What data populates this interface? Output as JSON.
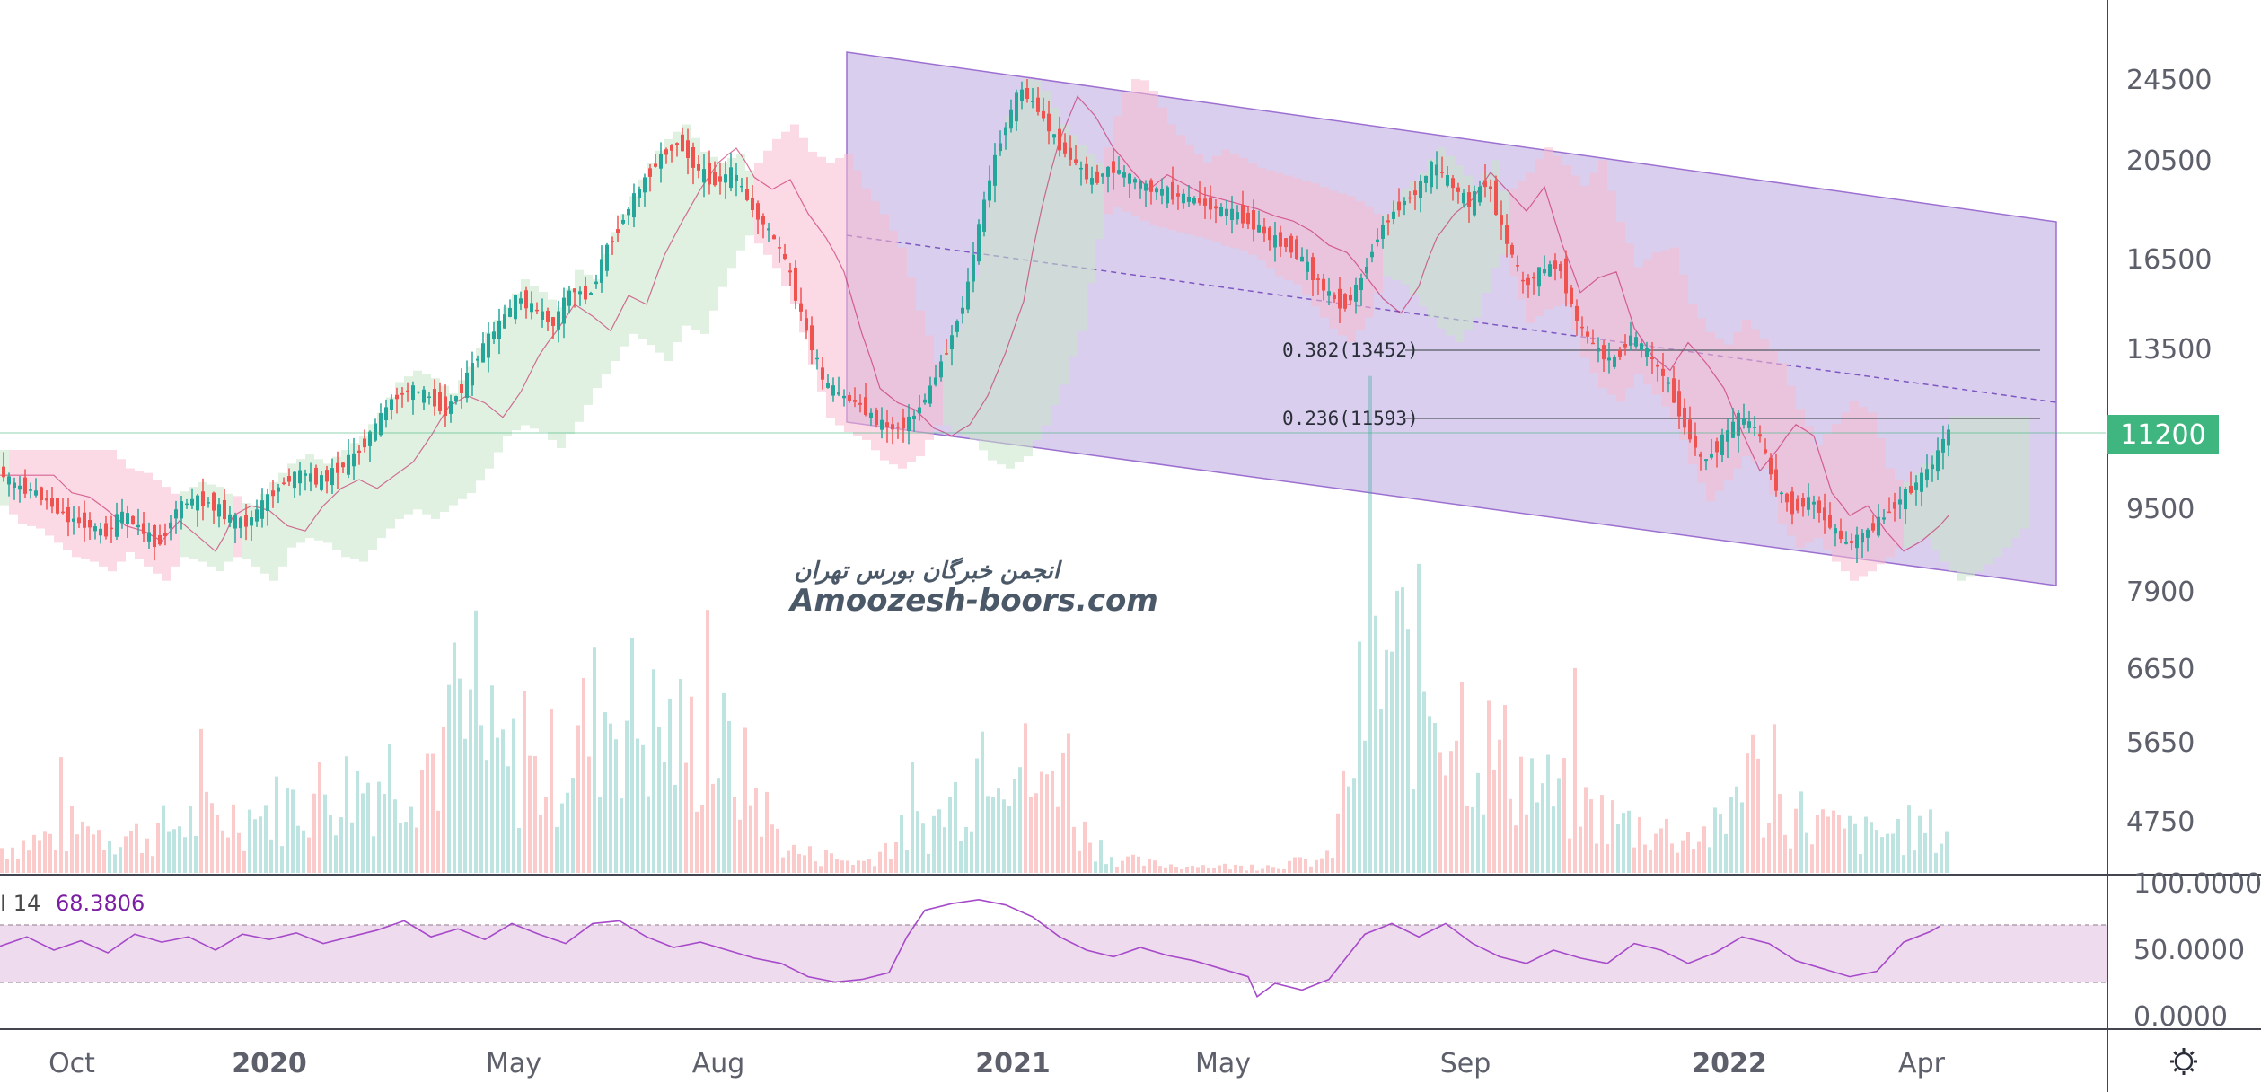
{
  "colors": {
    "up": "#26a69a",
    "down": "#ef5350",
    "channel_fill": "#b39ddb",
    "channel_line": "#9c6fd0",
    "rsi_line": "#a64ac9",
    "rsi_band": "#e8cfe8",
    "price_line": "#3fb67f",
    "cloud_green": "#c8e6c9",
    "cloud_red": "#f8bbd0"
  },
  "chart_data": {
    "type": "candlestick",
    "x_ticks": [
      "Oct",
      "2020",
      "May",
      "Aug",
      "2021",
      "May",
      "Sep",
      "2022",
      "Apr"
    ],
    "x_ticks_bold": [
      false,
      true,
      false,
      false,
      true,
      false,
      false,
      true,
      false
    ],
    "y_ticks": [
      "24500",
      "20500",
      "16500",
      "13500",
      "9500",
      "7900",
      "6650",
      "5650",
      "4750"
    ],
    "last_price": "11200",
    "fib_levels": [
      {
        "label": "0.382(13452)",
        "value": 13452
      },
      {
        "label": "0.236(11593)",
        "value": 11593
      }
    ],
    "watermark": {
      "line1": "انجمن خبرگان بورس تهران",
      "line2": "Amoozesh-boors.com"
    },
    "indicator": {
      "label": "I 14",
      "value": "68.3806",
      "y_ticks": [
        "100.0000",
        "50.0000",
        "0.0000"
      ],
      "band": [
        30,
        70
      ]
    },
    "price_path": [
      [
        0,
        10400
      ],
      [
        20,
        10000
      ],
      [
        40,
        9900
      ],
      [
        60,
        9600
      ],
      [
        80,
        9300
      ],
      [
        100,
        9200
      ],
      [
        120,
        9000
      ],
      [
        140,
        9400
      ],
      [
        160,
        9100
      ],
      [
        180,
        8800
      ],
      [
        190,
        9100
      ],
      [
        200,
        9500
      ],
      [
        220,
        9700
      ],
      [
        240,
        9600
      ],
      [
        260,
        9300
      ],
      [
        280,
        9200
      ],
      [
        300,
        9700
      ],
      [
        320,
        10100
      ],
      [
        340,
        10300
      ],
      [
        360,
        10100
      ],
      [
        380,
        10400
      ],
      [
        400,
        10700
      ],
      [
        420,
        11300
      ],
      [
        440,
        12100
      ],
      [
        460,
        12400
      ],
      [
        480,
        12200
      ],
      [
        500,
        11800
      ],
      [
        520,
        12500
      ],
      [
        540,
        13500
      ],
      [
        560,
        14300
      ],
      [
        580,
        15200
      ],
      [
        600,
        14800
      ],
      [
        620,
        14300
      ],
      [
        640,
        15500
      ],
      [
        660,
        15200
      ],
      [
        680,
        16900
      ],
      [
        700,
        18300
      ],
      [
        720,
        19600
      ],
      [
        740,
        20700
      ],
      [
        760,
        21400
      ],
      [
        780,
        20100
      ],
      [
        800,
        19600
      ],
      [
        820,
        20000
      ],
      [
        840,
        18600
      ],
      [
        860,
        17600
      ],
      [
        880,
        16300
      ],
      [
        900,
        14200
      ],
      [
        920,
        12600
      ],
      [
        940,
        12200
      ],
      [
        960,
        12000
      ],
      [
        980,
        11500
      ],
      [
        1000,
        11300
      ],
      [
        1020,
        11600
      ],
      [
        1040,
        12400
      ],
      [
        1060,
        13600
      ],
      [
        1080,
        15300
      ],
      [
        1100,
        18800
      ],
      [
        1120,
        21800
      ],
      [
        1140,
        24000
      ],
      [
        1160,
        23000
      ],
      [
        1180,
        21400
      ],
      [
        1200,
        20400
      ],
      [
        1220,
        19600
      ],
      [
        1240,
        20200
      ],
      [
        1260,
        19800
      ],
      [
        1280,
        19400
      ],
      [
        1300,
        19200
      ],
      [
        1320,
        19000
      ],
      [
        1340,
        18800
      ],
      [
        1360,
        18500
      ],
      [
        1380,
        18300
      ],
      [
        1400,
        17900
      ],
      [
        1420,
        17300
      ],
      [
        1440,
        17000
      ],
      [
        1460,
        16200
      ],
      [
        1480,
        15400
      ],
      [
        1500,
        14900
      ],
      [
        1520,
        15800
      ],
      [
        1540,
        17600
      ],
      [
        1560,
        18600
      ],
      [
        1580,
        19200
      ],
      [
        1600,
        20300
      ],
      [
        1620,
        19500
      ],
      [
        1640,
        18700
      ],
      [
        1660,
        19700
      ],
      [
        1680,
        17300
      ],
      [
        1700,
        15600
      ],
      [
        1720,
        16100
      ],
      [
        1740,
        16300
      ],
      [
        1760,
        14400
      ],
      [
        1780,
        13500
      ],
      [
        1800,
        13100
      ],
      [
        1820,
        13900
      ],
      [
        1840,
        13300
      ],
      [
        1860,
        12600
      ],
      [
        1880,
        11400
      ],
      [
        1900,
        10500
      ],
      [
        1920,
        11000
      ],
      [
        1940,
        11600
      ],
      [
        1960,
        11300
      ],
      [
        1980,
        10000
      ],
      [
        2000,
        9500
      ],
      [
        2020,
        9700
      ],
      [
        2040,
        9200
      ],
      [
        2060,
        8800
      ],
      [
        2080,
        9000
      ],
      [
        2100,
        9300
      ],
      [
        2120,
        9700
      ],
      [
        2140,
        10100
      ],
      [
        2160,
        10600
      ],
      [
        2170,
        11200
      ]
    ],
    "volume_profile": [
      [
        0,
        35
      ],
      [
        40,
        45
      ],
      [
        80,
        60
      ],
      [
        120,
        55
      ],
      [
        160,
        50
      ],
      [
        200,
        70
      ],
      [
        240,
        75
      ],
      [
        280,
        80
      ],
      [
        320,
        95
      ],
      [
        360,
        110
      ],
      [
        400,
        125
      ],
      [
        440,
        145
      ],
      [
        480,
        160
      ],
      [
        520,
        190
      ],
      [
        560,
        150
      ],
      [
        600,
        130
      ],
      [
        640,
        180
      ],
      [
        680,
        240
      ],
      [
        720,
        200
      ],
      [
        760,
        180
      ],
      [
        800,
        170
      ],
      [
        840,
        110
      ],
      [
        860,
        60
      ],
      [
        880,
        30
      ],
      [
        920,
        20
      ],
      [
        960,
        15
      ],
      [
        1000,
        50
      ],
      [
        1040,
        70
      ],
      [
        1080,
        130
      ],
      [
        1100,
        230
      ],
      [
        1120,
        190
      ],
      [
        1140,
        140
      ],
      [
        1160,
        100
      ],
      [
        1180,
        200
      ],
      [
        1200,
        60
      ],
      [
        1240,
        20
      ],
      [
        1280,
        12
      ],
      [
        1320,
        10
      ],
      [
        1400,
        8
      ],
      [
        1480,
        20
      ],
      [
        1500,
        140
      ],
      [
        1520,
        250
      ],
      [
        1540,
        290
      ],
      [
        1560,
        280
      ],
      [
        1600,
        250
      ],
      [
        1620,
        230
      ],
      [
        1640,
        180
      ],
      [
        1680,
        150
      ],
      [
        1720,
        110
      ],
      [
        1760,
        90
      ],
      [
        1800,
        70
      ],
      [
        1840,
        60
      ],
      [
        1880,
        50
      ],
      [
        1920,
        60
      ],
      [
        1940,
        180
      ],
      [
        1960,
        100
      ],
      [
        2000,
        80
      ],
      [
        2040,
        60
      ],
      [
        2080,
        50
      ],
      [
        2120,
        60
      ],
      [
        2160,
        55
      ]
    ],
    "rsi_path": [
      [
        0,
        53
      ],
      [
        30,
        60
      ],
      [
        60,
        50
      ],
      [
        90,
        57
      ],
      [
        120,
        48
      ],
      [
        150,
        62
      ],
      [
        180,
        56
      ],
      [
        210,
        60
      ],
      [
        240,
        50
      ],
      [
        270,
        62
      ],
      [
        300,
        58
      ],
      [
        330,
        63
      ],
      [
        360,
        55
      ],
      [
        390,
        60
      ],
      [
        420,
        65
      ],
      [
        450,
        72
      ],
      [
        480,
        60
      ],
      [
        510,
        66
      ],
      [
        540,
        58
      ],
      [
        570,
        70
      ],
      [
        600,
        62
      ],
      [
        630,
        55
      ],
      [
        660,
        70
      ],
      [
        690,
        72
      ],
      [
        720,
        60
      ],
      [
        750,
        52
      ],
      [
        780,
        56
      ],
      [
        810,
        50
      ],
      [
        840,
        44
      ],
      [
        870,
        40
      ],
      [
        900,
        30
      ],
      [
        930,
        26
      ],
      [
        960,
        28
      ],
      [
        990,
        33
      ],
      [
        1010,
        60
      ],
      [
        1030,
        80
      ],
      [
        1060,
        85
      ],
      [
        1090,
        88
      ],
      [
        1120,
        84
      ],
      [
        1150,
        75
      ],
      [
        1180,
        60
      ],
      [
        1210,
        50
      ],
      [
        1240,
        45
      ],
      [
        1270,
        52
      ],
      [
        1300,
        46
      ],
      [
        1330,
        42
      ],
      [
        1360,
        36
      ],
      [
        1390,
        30
      ],
      [
        1400,
        15
      ],
      [
        1420,
        25
      ],
      [
        1450,
        20
      ],
      [
        1480,
        28
      ],
      [
        1500,
        45
      ],
      [
        1520,
        62
      ],
      [
        1550,
        70
      ],
      [
        1580,
        60
      ],
      [
        1610,
        70
      ],
      [
        1640,
        55
      ],
      [
        1670,
        45
      ],
      [
        1700,
        40
      ],
      [
        1730,
        50
      ],
      [
        1760,
        44
      ],
      [
        1790,
        40
      ],
      [
        1820,
        55
      ],
      [
        1850,
        50
      ],
      [
        1880,
        40
      ],
      [
        1910,
        48
      ],
      [
        1940,
        60
      ],
      [
        1970,
        55
      ],
      [
        2000,
        42
      ],
      [
        2030,
        36
      ],
      [
        2060,
        30
      ],
      [
        2090,
        34
      ],
      [
        2120,
        56
      ],
      [
        2150,
        64
      ],
      [
        2160,
        68
      ]
    ]
  }
}
